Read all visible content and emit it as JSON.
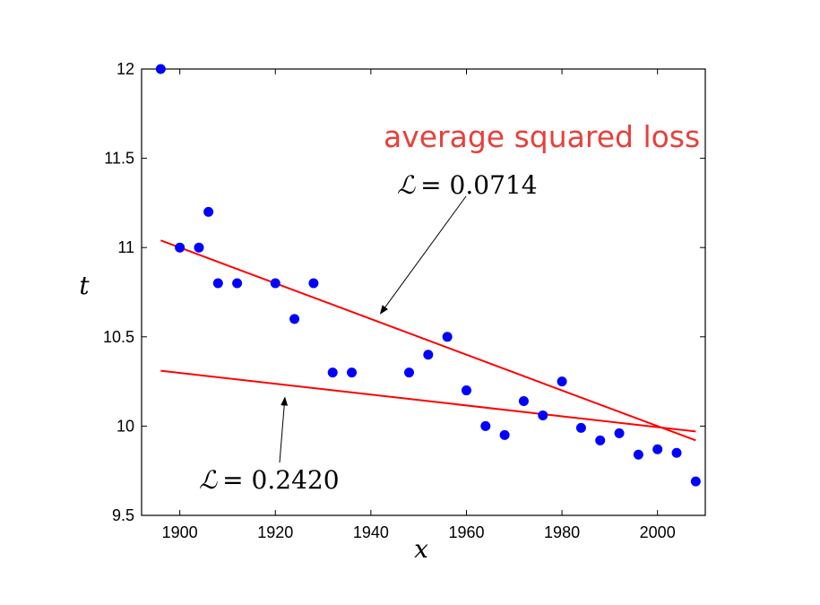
{
  "chart_data": {
    "type": "scatter",
    "title": "",
    "xlabel": "x",
    "ylabel": "t",
    "xlim": [
      1892,
      2010
    ],
    "ylim": [
      9.5,
      12
    ],
    "xticks": [
      1900,
      1920,
      1940,
      1960,
      1980,
      2000
    ],
    "yticks": [
      9.5,
      10,
      10.5,
      11,
      11.5,
      12
    ],
    "grid": false,
    "points": {
      "color": "#0000ff",
      "x": [
        1896,
        1900,
        1904,
        1906,
        1908,
        1912,
        1920,
        1924,
        1928,
        1932,
        1936,
        1948,
        1952,
        1956,
        1960,
        1964,
        1968,
        1972,
        1976,
        1980,
        1984,
        1988,
        1992,
        1996,
        2000,
        2004,
        2008
      ],
      "y": [
        12.0,
        11.0,
        11.0,
        11.2,
        10.8,
        10.8,
        10.8,
        10.6,
        10.8,
        10.3,
        10.3,
        10.3,
        10.4,
        10.5,
        10.2,
        10.0,
        9.95,
        10.14,
        10.06,
        10.25,
        9.99,
        9.92,
        9.96,
        9.84,
        9.87,
        9.85,
        9.69
      ]
    },
    "lines": [
      {
        "color": "#ff0000",
        "x": [
          1896,
          2008
        ],
        "y": [
          11.04,
          9.92
        ]
      },
      {
        "color": "#ff0000",
        "x": [
          1896,
          2008
        ],
        "y": [
          10.31,
          9.97
        ]
      }
    ],
    "annotations": [
      {
        "symbol": "ℒ",
        "text": "= 0.0714",
        "arrow_to": [
          1942,
          10.63
        ]
      },
      {
        "symbol": "ℒ",
        "text": "= 0.2420",
        "arrow_to": [
          1922,
          10.16
        ]
      }
    ],
    "overlay_text": "average squared loss"
  }
}
